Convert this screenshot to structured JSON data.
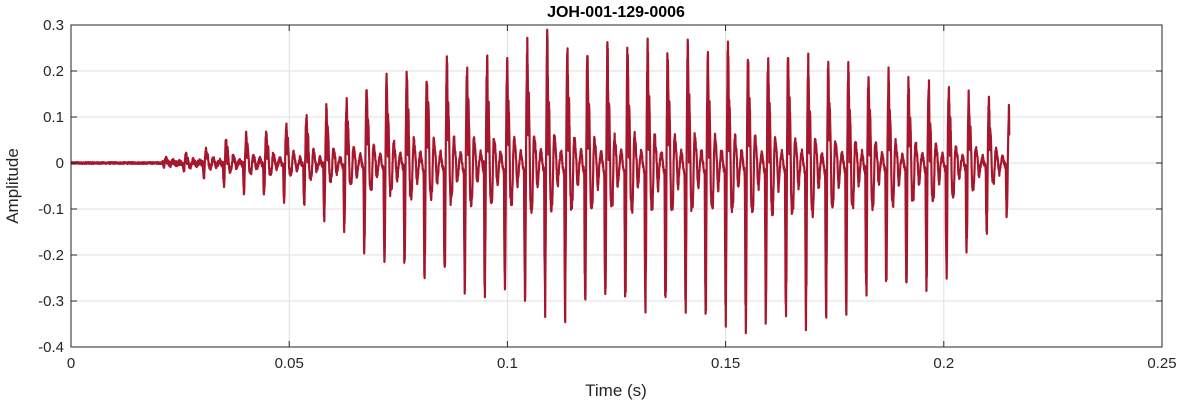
{
  "chart_data": {
    "type": "line",
    "title": "JOH-001-129-0006",
    "xlabel": "Time (s)",
    "ylabel": "Amplitude",
    "xlim": [
      0,
      0.25
    ],
    "ylim": [
      -0.4,
      0.3
    ],
    "xticks": [
      0,
      0.05,
      0.1,
      0.15,
      0.2,
      0.25
    ],
    "xtick_labels": [
      "0",
      "0.05",
      "0.1",
      "0.15",
      "0.2",
      "0.25"
    ],
    "yticks": [
      0.3,
      0.2,
      0.1,
      0,
      -0.1,
      -0.2,
      -0.3,
      -0.4
    ],
    "ytick_labels": [
      "0.3",
      "0.2",
      "0.1",
      "0",
      "-0.1",
      "-0.2",
      "-0.3",
      "-0.4"
    ],
    "grid": true,
    "color": "#a6172d",
    "series": [
      {
        "x_start": 0,
        "x_end": 0.215,
        "upper_envelope": [
          [
            0,
            0.002
          ],
          [
            0.02,
            0.003
          ],
          [
            0.023,
            0.015
          ],
          [
            0.03,
            0.025
          ],
          [
            0.036,
            0.05
          ],
          [
            0.045,
            0.07
          ],
          [
            0.055,
            0.1
          ],
          [
            0.063,
            0.13
          ],
          [
            0.07,
            0.17
          ],
          [
            0.08,
            0.2
          ],
          [
            0.09,
            0.21
          ],
          [
            0.1,
            0.22
          ],
          [
            0.108,
            0.255
          ],
          [
            0.115,
            0.23
          ],
          [
            0.13,
            0.24
          ],
          [
            0.15,
            0.24
          ],
          [
            0.16,
            0.225
          ],
          [
            0.175,
            0.2
          ],
          [
            0.19,
            0.18
          ],
          [
            0.2,
            0.16
          ],
          [
            0.21,
            0.13
          ],
          [
            0.215,
            0.11
          ]
        ],
        "lower_envelope": [
          [
            0,
            -0.003
          ],
          [
            0.02,
            -0.003
          ],
          [
            0.023,
            -0.01
          ],
          [
            0.03,
            -0.03
          ],
          [
            0.036,
            -0.05
          ],
          [
            0.045,
            -0.07
          ],
          [
            0.055,
            -0.1
          ],
          [
            0.063,
            -0.14
          ],
          [
            0.07,
            -0.2
          ],
          [
            0.08,
            -0.24
          ],
          [
            0.09,
            -0.26
          ],
          [
            0.1,
            -0.27
          ],
          [
            0.106,
            -0.31
          ],
          [
            0.115,
            -0.3
          ],
          [
            0.13,
            -0.31
          ],
          [
            0.15,
            -0.32
          ],
          [
            0.17,
            -0.33
          ],
          [
            0.18,
            -0.29
          ],
          [
            0.19,
            -0.27
          ],
          [
            0.2,
            -0.25
          ],
          [
            0.21,
            -0.14
          ],
          [
            0.215,
            -0.11
          ]
        ],
        "pitch_period_s": 0.0046,
        "final_value": 0.06
      }
    ]
  }
}
